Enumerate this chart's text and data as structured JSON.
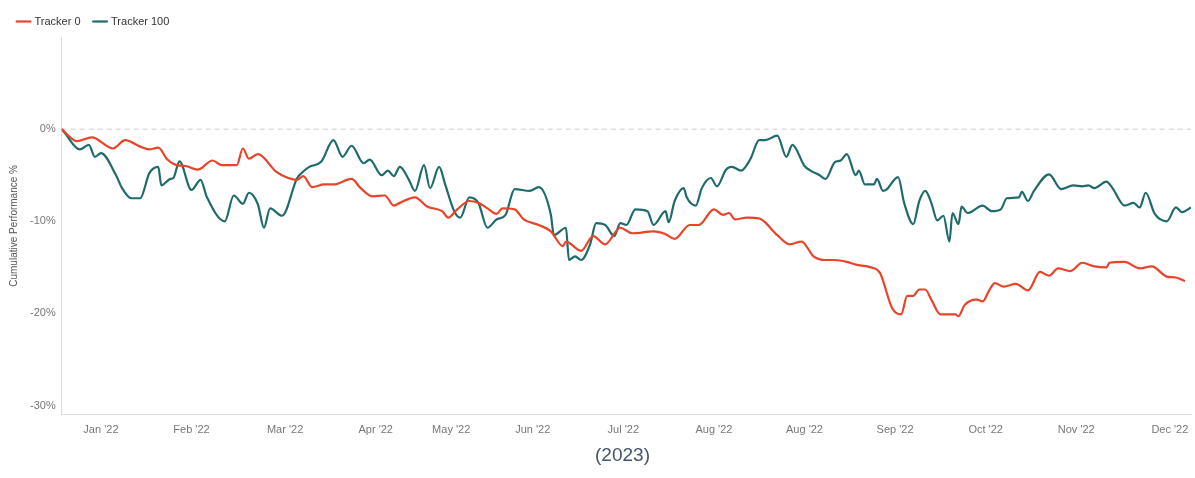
{
  "chart_data": {
    "type": "line",
    "ylabel": "Cumulative Performance %",
    "legend": "top left",
    "marker": "none",
    "grid": false,
    "xlim": [
      "2021-12-28",
      "2023-01-06"
    ],
    "xticks": [
      {
        "value": "2022-01-10",
        "label": "Jan '22"
      },
      {
        "value": "2022-02-09",
        "label": "Feb '22"
      },
      {
        "value": "2022-03-12",
        "label": "Mar '22"
      },
      {
        "value": "2022-04-11",
        "label": "Apr '22"
      },
      {
        "value": "2022-05-06",
        "label": "May '22"
      },
      {
        "value": "2022-06-02",
        "label": "Jun '22"
      },
      {
        "value": "2022-07-02",
        "label": "Jul '22"
      },
      {
        "value": "2022-08-01",
        "label": "Aug '22"
      },
      {
        "value": "2022-08-31",
        "label": "Aug '22"
      },
      {
        "value": "2022-09-30",
        "label": "Sep '22"
      },
      {
        "value": "2022-10-30",
        "label": "Oct '22"
      },
      {
        "value": "2022-11-29",
        "label": "Nov '22"
      },
      {
        "value": "2022-12-30",
        "label": "Dec '22"
      }
    ],
    "ylim": [
      -31,
      10
    ],
    "yticks": [
      {
        "value": 0,
        "label": "0%"
      },
      {
        "value": -10,
        "label": "-10%"
      },
      {
        "value": -20,
        "label": "-20%"
      },
      {
        "value": -30,
        "label": "-30%"
      }
    ],
    "ref_lines": [
      {
        "axis": "y",
        "value": 0,
        "color": "#dddddd",
        "line_style": "dashed"
      }
    ],
    "annotations": [
      "(2023)"
    ],
    "series": [
      {
        "name": "Tracker 0",
        "color": "#e8442a",
        "x": [
          "2021-12-28",
          "2022-01-02",
          "2022-01-07",
          "2022-01-14",
          "2022-01-18",
          "2022-01-23",
          "2022-01-26",
          "2022-01-29",
          "2022-02-01",
          "2022-02-04",
          "2022-02-07",
          "2022-02-11",
          "2022-02-16",
          "2022-02-19",
          "2022-02-24",
          "2022-02-26",
          "2022-02-28",
          "2022-03-03",
          "2022-03-09",
          "2022-03-13",
          "2022-03-16",
          "2022-03-18",
          "2022-03-21",
          "2022-03-25",
          "2022-03-28",
          "2022-04-03",
          "2022-04-06",
          "2022-04-10",
          "2022-04-14",
          "2022-04-17",
          "2022-04-19",
          "2022-04-24",
          "2022-04-28",
          "2022-05-03",
          "2022-05-05",
          "2022-05-08",
          "2022-05-12",
          "2022-05-15",
          "2022-05-18",
          "2022-05-21",
          "2022-05-23",
          "2022-05-27",
          "2022-05-30",
          "2022-06-04",
          "2022-06-08",
          "2022-06-12",
          "2022-06-13",
          "2022-06-18",
          "2022-06-22",
          "2022-06-26",
          "2022-07-01",
          "2022-07-05",
          "2022-07-12",
          "2022-07-16",
          "2022-07-19",
          "2022-07-24",
          "2022-07-27",
          "2022-08-01",
          "2022-08-04",
          "2022-08-06",
          "2022-08-08",
          "2022-08-12",
          "2022-08-16",
          "2022-08-22",
          "2022-08-26",
          "2022-08-30",
          "2022-09-03",
          "2022-09-07",
          "2022-09-10",
          "2022-09-14",
          "2022-09-17",
          "2022-09-22",
          "2022-09-25",
          "2022-09-29",
          "2022-10-02",
          "2022-10-04",
          "2022-10-06",
          "2022-10-08",
          "2022-10-10",
          "2022-10-12",
          "2022-10-15",
          "2022-10-20",
          "2022-10-21",
          "2022-10-23",
          "2022-10-27",
          "2022-10-29",
          "2022-10-31",
          "2022-11-02",
          "2022-11-05",
          "2022-11-09",
          "2022-11-13",
          "2022-11-17",
          "2022-11-20",
          "2022-11-23",
          "2022-11-27",
          "2022-12-01",
          "2022-12-05",
          "2022-12-09",
          "2022-12-10",
          "2022-12-15",
          "2022-12-20",
          "2022-12-24",
          "2022-12-29",
          "2023-01-01",
          "2023-01-04"
        ],
        "values": [
          0,
          -1.3,
          -0.9,
          -2.1,
          -1.2,
          -1.9,
          -2.2,
          -2.0,
          -3.3,
          -3.9,
          -4.0,
          -4.4,
          -3.4,
          -3.9,
          -3.9,
          -2.1,
          -3.2,
          -2.7,
          -4.6,
          -5.3,
          -5.5,
          -5.1,
          -6.3,
          -6.0,
          -6.0,
          -5.4,
          -6.4,
          -7.3,
          -7.2,
          -8.3,
          -8.0,
          -7.4,
          -8.4,
          -8.9,
          -9.6,
          -8.7,
          -7.8,
          -8.0,
          -8.6,
          -9.2,
          -8.6,
          -8.7,
          -9.8,
          -10.4,
          -11.1,
          -12.7,
          -12.2,
          -13.2,
          -11.6,
          -12.5,
          -10.7,
          -11.3,
          -11.1,
          -11.4,
          -11.9,
          -10.4,
          -10.4,
          -8.7,
          -9.3,
          -9.1,
          -9.8,
          -9.6,
          -9.7,
          -11.5,
          -12.5,
          -12.2,
          -13.8,
          -14.2,
          -14.2,
          -14.4,
          -14.7,
          -15.0,
          -15.6,
          -19.4,
          -20.1,
          -18.1,
          -18.1,
          -17.4,
          -17.4,
          -18.5,
          -20.1,
          -20.1,
          -20.3,
          -19.1,
          -18.5,
          -18.7,
          -17.6,
          -16.7,
          -17.1,
          -16.8,
          -17.5,
          -15.5,
          -15.9,
          -15.1,
          -15.4,
          -14.5,
          -14.9,
          -15.0,
          -14.5,
          -14.4,
          -15.1,
          -14.9,
          -16.0,
          -16.1,
          -16.5
        ]
      },
      {
        "name": "Tracker 100",
        "color": "#1f6b6b",
        "x": [
          "2021-12-28",
          "2021-12-29",
          "2022-01-03",
          "2022-01-06",
          "2022-01-08",
          "2022-01-10",
          "2022-01-15",
          "2022-01-17",
          "2022-01-20",
          "2022-01-23",
          "2022-01-26",
          "2022-01-29",
          "2022-01-30",
          "2022-02-02",
          "2022-02-03",
          "2022-02-05",
          "2022-02-09",
          "2022-02-12",
          "2022-02-14",
          "2022-02-20",
          "2022-02-23",
          "2022-02-26",
          "2022-02-28",
          "2022-03-03",
          "2022-03-05",
          "2022-03-07",
          "2022-03-11",
          "2022-03-16",
          "2022-03-18",
          "2022-03-20",
          "2022-03-24",
          "2022-03-28",
          "2022-03-31",
          "2022-04-03",
          "2022-04-07",
          "2022-04-09",
          "2022-04-13",
          "2022-04-15",
          "2022-04-17",
          "2022-04-19",
          "2022-04-22",
          "2022-04-24",
          "2022-04-27",
          "2022-04-29",
          "2022-05-02",
          "2022-05-04",
          "2022-05-07",
          "2022-05-09",
          "2022-05-12",
          "2022-05-15",
          "2022-05-18",
          "2022-05-21",
          "2022-05-24",
          "2022-05-27",
          "2022-06-01",
          "2022-06-04",
          "2022-06-08",
          "2022-06-09",
          "2022-06-13",
          "2022-06-14",
          "2022-06-16",
          "2022-06-18",
          "2022-06-21",
          "2022-06-23",
          "2022-06-26",
          "2022-06-29",
          "2022-07-01",
          "2022-07-03",
          "2022-07-06",
          "2022-07-10",
          "2022-07-12",
          "2022-07-16",
          "2022-07-17",
          "2022-07-19",
          "2022-07-22",
          "2022-07-23",
          "2022-07-26",
          "2022-07-28",
          "2022-07-31",
          "2022-08-02",
          "2022-08-05",
          "2022-08-07",
          "2022-08-10",
          "2022-08-13",
          "2022-08-16",
          "2022-08-18",
          "2022-08-22",
          "2022-08-25",
          "2022-08-27",
          "2022-08-31",
          "2022-09-02",
          "2022-09-05",
          "2022-09-07",
          "2022-09-10",
          "2022-09-12",
          "2022-09-14",
          "2022-09-17",
          "2022-09-18",
          "2022-09-20",
          "2022-09-23",
          "2022-09-24",
          "2022-09-26",
          "2022-09-27",
          "2022-10-01",
          "2022-10-03",
          "2022-10-06",
          "2022-10-08",
          "2022-10-10",
          "2022-10-12",
          "2022-10-14",
          "2022-10-16",
          "2022-10-18",
          "2022-10-19",
          "2022-10-21",
          "2022-10-22",
          "2022-10-24",
          "2022-10-29",
          "2022-11-01",
          "2022-11-04",
          "2022-11-06",
          "2022-11-10",
          "2022-11-11",
          "2022-11-13",
          "2022-11-15",
          "2022-11-20",
          "2022-11-24",
          "2022-11-28",
          "2022-12-01",
          "2022-12-03",
          "2022-12-05",
          "2022-12-09",
          "2022-12-11",
          "2022-12-15",
          "2022-12-18",
          "2022-12-20",
          "2022-12-22",
          "2022-12-25",
          "2022-12-29",
          "2023-01-01",
          "2023-01-03",
          "2023-01-06"
        ],
        "values": [
          0,
          -0.4,
          -2.2,
          -1.7,
          -3.0,
          -2.6,
          -5.0,
          -6.4,
          -7.5,
          -7.5,
          -4.8,
          -4.1,
          -6.1,
          -5.4,
          -5.3,
          -3.5,
          -6.6,
          -5.5,
          -7.3,
          -10.0,
          -7.2,
          -8.1,
          -6.9,
          -8.2,
          -10.7,
          -8.6,
          -9.4,
          -5.3,
          -4.6,
          -4.1,
          -3.5,
          -1.2,
          -3.0,
          -1.8,
          -3.7,
          -3.3,
          -5.0,
          -4.5,
          -5.1,
          -4.1,
          -5.5,
          -6.7,
          -3.9,
          -6.4,
          -4.1,
          -6.0,
          -8.9,
          -9.6,
          -7.4,
          -8.0,
          -10.7,
          -9.8,
          -9.3,
          -6.5,
          -6.7,
          -6.3,
          -9.3,
          -11.5,
          -10.7,
          -14.2,
          -13.8,
          -14.2,
          -12.5,
          -10.2,
          -10.4,
          -11.6,
          -10.2,
          -10.4,
          -8.7,
          -8.9,
          -10.4,
          -8.9,
          -10.1,
          -7.8,
          -6.4,
          -7.4,
          -8.3,
          -6.4,
          -5.3,
          -6.2,
          -4.4,
          -4.1,
          -4.5,
          -3.3,
          -1.2,
          -1.2,
          -0.7,
          -3.0,
          -1.7,
          -4.0,
          -4.5,
          -5.0,
          -5.4,
          -3.6,
          -3.4,
          -2.7,
          -5.0,
          -4.5,
          -6.0,
          -6.0,
          -5.4,
          -6.7,
          -6.6,
          -5.2,
          -8.0,
          -10.3,
          -7.8,
          -6.7,
          -8.0,
          -9.9,
          -9.4,
          -12.2,
          -9.1,
          -10.3,
          -8.4,
          -9.1,
          -8.3,
          -8.9,
          -8.7,
          -7.5,
          -7.4,
          -6.8,
          -7.8,
          -6.7,
          -4.9,
          -6.5,
          -6.1,
          -6.2,
          -6.1,
          -6.4,
          -5.7,
          -6.4,
          -8.3,
          -8.0,
          -8.5,
          -6.9,
          -9.2,
          -10.0,
          -8.5,
          -9.0,
          -8.5
        ]
      }
    ]
  }
}
